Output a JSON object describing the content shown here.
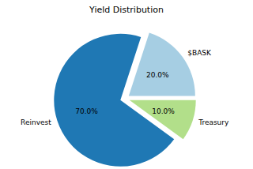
{
  "chart_data": {
    "type": "pie",
    "title": "Yield Distribution",
    "categories": [
      "Reinvest",
      "$BASK",
      "Treasury"
    ],
    "values": [
      70,
      20,
      10
    ],
    "value_labels": [
      "70.0%",
      "20.0%",
      "10.0%"
    ],
    "colors": [
      "#1f78b4",
      "#a6cee3",
      "#b2df8a"
    ],
    "data_labels": true
  }
}
